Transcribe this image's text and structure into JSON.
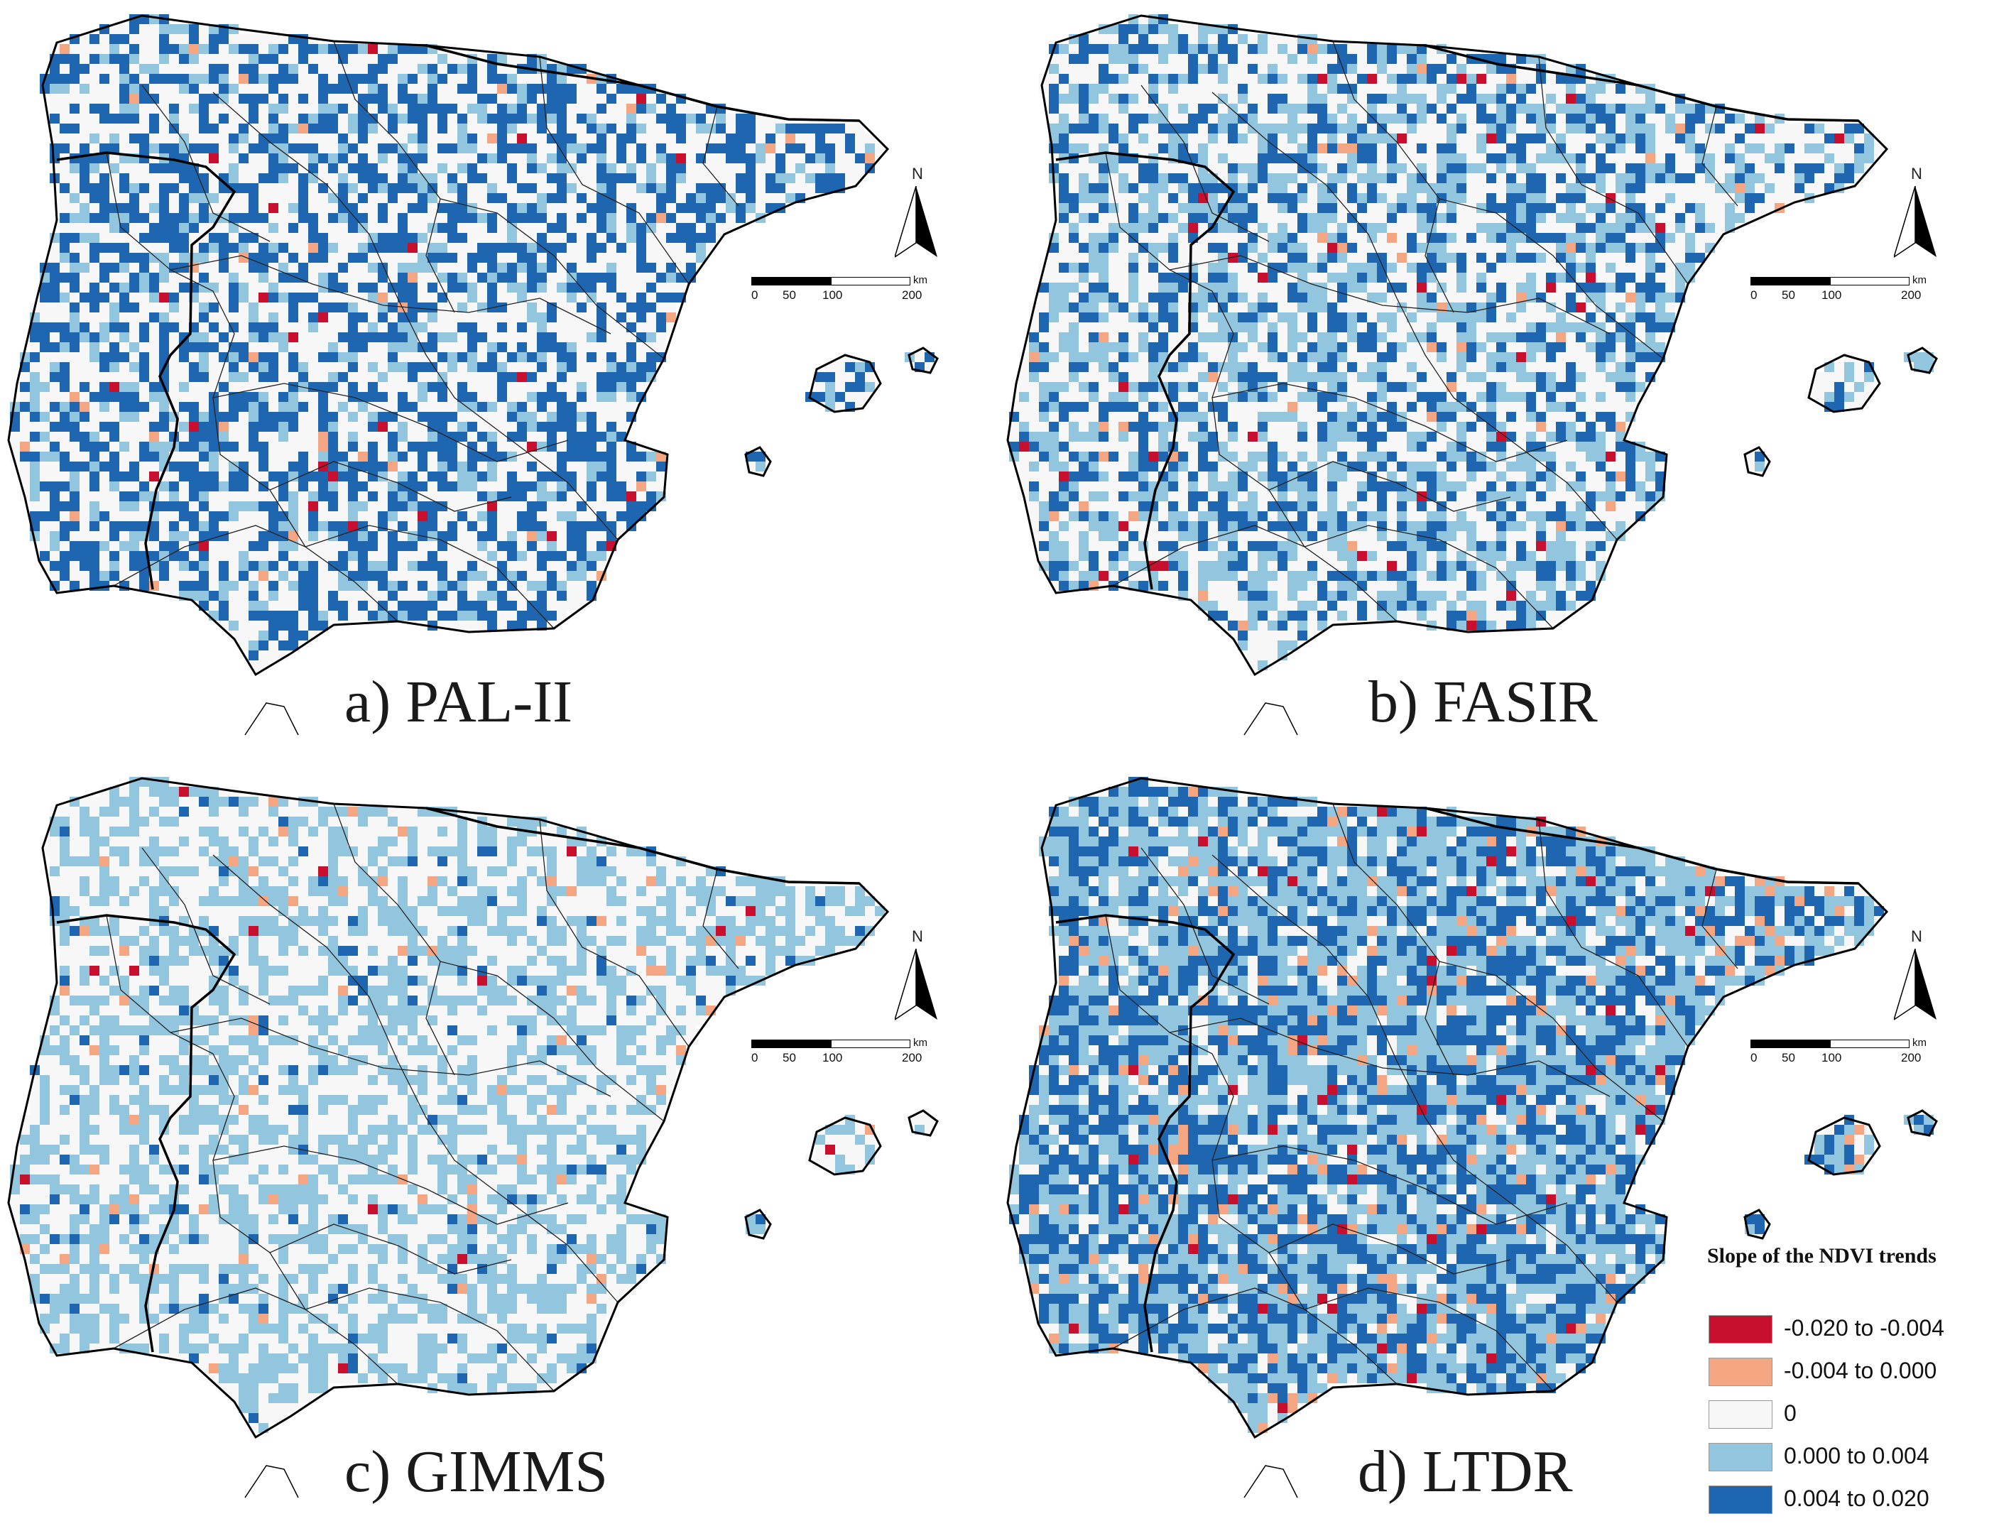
{
  "panels": [
    {
      "id": "a",
      "label": "a) PAL-II",
      "weights": [
        0.01,
        0.01,
        0.45,
        0.14,
        0.39
      ]
    },
    {
      "id": "b",
      "label": "b) FASIR",
      "weights": [
        0.008,
        0.012,
        0.42,
        0.3,
        0.26
      ]
    },
    {
      "id": "c",
      "label": "c) GIMMS",
      "weights": [
        0.004,
        0.02,
        0.5,
        0.44,
        0.036
      ]
    },
    {
      "id": "d",
      "label": "d) LTDR",
      "weights": [
        0.01,
        0.06,
        0.15,
        0.42,
        0.36
      ]
    }
  ],
  "north_arrow": {
    "letter": "N"
  },
  "scale_bar": {
    "ticks": [
      "0",
      "50",
      "100",
      "200"
    ],
    "unit": "km"
  },
  "legend": {
    "title": "Slope of the NDVI trends",
    "items": [
      {
        "label": "-0.020 to -0.004",
        "color": "#c8102e"
      },
      {
        "label": "-0.004 to 0.000",
        "color": "#f4a582"
      },
      {
        "label": "0",
        "color": "#f7f7f7"
      },
      {
        "label": "0.000 to 0.004",
        "color": "#92c5de"
      },
      {
        "label": "0.004 to 0.020",
        "color": "#1f66b0"
      }
    ]
  }
}
